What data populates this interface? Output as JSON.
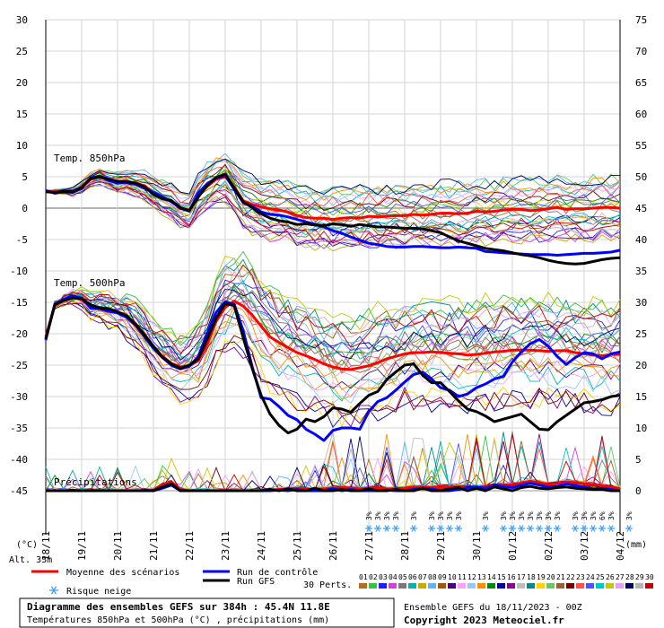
{
  "chart_data": {
    "type": "line",
    "title": "",
    "left_axis_ticks": [
      "30",
      "25",
      "20",
      "15",
      "10",
      "5",
      "0",
      "-5",
      "-10",
      "-15",
      "-20",
      "-25",
      "-30",
      "-35",
      "-40",
      "-45"
    ],
    "right_axis_ticks": [
      "75",
      "70",
      "65",
      "60",
      "55",
      "50",
      "45",
      "40",
      "35",
      "30",
      "25",
      "20",
      "15",
      "10",
      "5",
      "0"
    ],
    "left_unit": "(°C)",
    "right_unit": "(mm)",
    "altitude_label": "Alt. 33m",
    "date_labels": [
      "18/11",
      "19/11",
      "20/11",
      "21/11",
      "22/11",
      "23/11",
      "24/11",
      "25/11",
      "26/11",
      "27/11",
      "28/11",
      "29/11",
      "30/11",
      "01/12",
      "02/12",
      "03/12",
      "04/12"
    ],
    "panel_labels": {
      "t850": "Temp. 850hPa",
      "t500": "Temp. 500hPa",
      "precip": "Précipitations"
    },
    "x": [
      0,
      6,
      12,
      18,
      24,
      30,
      36,
      42,
      48,
      54,
      60,
      66,
      72,
      78,
      84,
      90,
      96,
      102,
      108,
      114,
      120,
      126,
      132,
      138,
      144,
      150,
      156,
      162,
      168,
      174,
      180,
      186,
      192,
      198,
      204,
      210,
      216,
      222,
      228,
      234,
      240,
      246,
      252,
      258,
      264,
      270,
      276,
      282,
      288,
      294,
      300,
      306,
      312,
      318,
      324,
      330,
      336,
      342,
      348,
      354,
      360,
      366,
      372,
      378,
      384
    ],
    "series": [
      {
        "name": "Moyenne des scénarios",
        "panel": "t850",
        "color": "#ff0000",
        "values": [
          2.7,
          2.6,
          2.7,
          2.6,
          3.4,
          4.6,
          4.9,
          4.5,
          4.2,
          4.3,
          3.9,
          3.6,
          2.4,
          1.6,
          1.2,
          -0.1,
          -0.3,
          2.0,
          3.5,
          4.6,
          5.0,
          3.4,
          1.2,
          0.6,
          0.2,
          -0.1,
          -0.3,
          -0.6,
          -1.2,
          -1.5,
          -1.6,
          -1.6,
          -1.8,
          -1.6,
          -1.5,
          -1.6,
          -1.3,
          -1.4,
          -1.3,
          -1.2,
          -1.2,
          -1.0,
          -1.1,
          -1.0,
          -0.8,
          -0.8,
          -0.9,
          -0.8,
          -0.5,
          -0.6,
          -0.5,
          -0.3,
          -0.2,
          -0.2,
          -0.4,
          -0.3,
          -0.1,
          0.1,
          -0.2,
          -0.1,
          -0.1,
          0.0,
          0.1,
          0.1,
          0.0
        ]
      },
      {
        "name": "Run de contrôle",
        "panel": "t850",
        "color": "#0000ff",
        "values": [
          2.8,
          2.4,
          2.6,
          2.5,
          3.2,
          4.8,
          5.1,
          4.4,
          4.0,
          4.1,
          3.8,
          3.2,
          2.5,
          1.8,
          1.0,
          0.0,
          -0.5,
          2.4,
          3.9,
          4.8,
          5.2,
          3.0,
          0.9,
          0.3,
          -0.6,
          -1.0,
          -1.1,
          -1.4,
          -1.8,
          -2.2,
          -2.6,
          -3.0,
          -3.6,
          -4.0,
          -4.6,
          -5.1,
          -5.6,
          -5.8,
          -6.1,
          -6.2,
          -6.2,
          -6.1,
          -6.1,
          -6.2,
          -6.3,
          -6.3,
          -6.2,
          -6.3,
          -6.4,
          -6.9,
          -7.0,
          -7.1,
          -7.2,
          -7.3,
          -7.4,
          -7.4,
          -7.4,
          -7.5,
          -7.4,
          -7.3,
          -7.2,
          -7.2,
          -7.1,
          -7.0,
          -6.7
        ]
      },
      {
        "name": "Run GFS",
        "panel": "t850",
        "color": "#000000",
        "values": [
          2.6,
          2.5,
          2.7,
          2.6,
          3.3,
          4.7,
          5.0,
          4.6,
          4.3,
          4.2,
          4.0,
          3.4,
          2.2,
          1.5,
          1.2,
          0.1,
          -0.4,
          1.8,
          3.6,
          4.9,
          5.4,
          3.2,
          1.0,
          0.1,
          -0.9,
          -1.6,
          -2.0,
          -2.2,
          -2.6,
          -2.5,
          -2.7,
          -2.8,
          -2.5,
          -2.6,
          -2.9,
          -2.6,
          -2.8,
          -3.0,
          -3.0,
          -3.1,
          -3.2,
          -3.2,
          -3.3,
          -3.6,
          -3.9,
          -4.6,
          -5.2,
          -5.6,
          -6.0,
          -6.4,
          -6.6,
          -6.8,
          -7.1,
          -7.4,
          -7.6,
          -7.9,
          -8.3,
          -8.6,
          -8.8,
          -8.9,
          -8.8,
          -8.5,
          -8.2,
          -8.0,
          -7.9
        ]
      },
      {
        "name": "Moyenne des scénarios",
        "panel": "t500",
        "color": "#ff0000",
        "values": [
          -20.5,
          -15.5,
          -14.6,
          -14.2,
          -14.5,
          -15.6,
          -15.8,
          -16.2,
          -16.6,
          -17.2,
          -18.4,
          -20.1,
          -22.1,
          -23.6,
          -24.7,
          -25.3,
          -25.1,
          -24.3,
          -21.7,
          -18.0,
          -15.8,
          -14.8,
          -15.6,
          -17.0,
          -18.8,
          -20.5,
          -21.4,
          -22.2,
          -23.0,
          -23.5,
          -24.1,
          -24.8,
          -25.3,
          -25.6,
          -25.7,
          -25.4,
          -25.1,
          -24.6,
          -24.0,
          -23.6,
          -23.2,
          -23.0,
          -23.0,
          -22.9,
          -23.0,
          -23.1,
          -23.2,
          -23.4,
          -23.3,
          -23.1,
          -22.9,
          -22.8,
          -22.6,
          -22.6,
          -22.6,
          -22.7,
          -22.8,
          -22.7,
          -22.7,
          -23.0,
          -23.2,
          -23.4,
          -23.5,
          -23.3,
          -23.3
        ]
      },
      {
        "name": "Run de contrôle",
        "panel": "t500",
        "color": "#0000ff",
        "values": [
          -21.0,
          -15.3,
          -14.5,
          -14.0,
          -14.3,
          -15.9,
          -16.0,
          -16.4,
          -16.7,
          -17.4,
          -18.6,
          -20.5,
          -22.3,
          -23.8,
          -25.0,
          -25.6,
          -25.2,
          -23.6,
          -19.9,
          -16.6,
          -14.9,
          -15.3,
          -19.5,
          -25.2,
          -30.2,
          -30.4,
          -31.6,
          -33.0,
          -33.7,
          -35.2,
          -36.0,
          -37.0,
          -35.4,
          -35.0,
          -35.0,
          -35.2,
          -32.4,
          -30.8,
          -30.2,
          -29.0,
          -27.7,
          -26.5,
          -26.1,
          -27.2,
          -28.6,
          -29.0,
          -30.0,
          -29.6,
          -28.6,
          -28.0,
          -27.2,
          -26.8,
          -24.5,
          -22.9,
          -21.6,
          -20.9,
          -22.0,
          -23.6,
          -24.9,
          -23.8,
          -23.0,
          -23.2,
          -24.0,
          -23.2,
          -22.9
        ]
      },
      {
        "name": "Run GFS",
        "panel": "t500",
        "color": "#000000",
        "values": [
          -20.8,
          -15.4,
          -14.7,
          -14.3,
          -14.4,
          -15.4,
          -15.9,
          -16.0,
          -16.5,
          -17.1,
          -18.5,
          -20.2,
          -22.0,
          -23.7,
          -24.8,
          -25.5,
          -25.0,
          -24.0,
          -20.8,
          -17.5,
          -15.2,
          -15.5,
          -20.6,
          -25.5,
          -29.8,
          -32.8,
          -34.6,
          -35.8,
          -35.2,
          -33.6,
          -34.0,
          -33.2,
          -31.8,
          -32.0,
          -32.5,
          -31.1,
          -29.8,
          -29.2,
          -27.3,
          -26.1,
          -25.0,
          -24.8,
          -26.6,
          -27.8,
          -27.8,
          -29.2,
          -30.7,
          -32.0,
          -32.4,
          -33.1,
          -34.0,
          -33.6,
          -33.2,
          -32.8,
          -34.0,
          -35.2,
          -35.3,
          -34.0,
          -33.0,
          -32.0,
          -31.0,
          -30.8,
          -30.5,
          -30.0,
          -29.8
        ]
      },
      {
        "name": "Moyenne des scénarios",
        "panel": "precip",
        "color": "#ff0000",
        "values": [
          0,
          0,
          0,
          0,
          0,
          0,
          0,
          0,
          0,
          0,
          0,
          0,
          0.1,
          0.8,
          1.4,
          0.2,
          0,
          0,
          0,
          0,
          0,
          0,
          0,
          0,
          0,
          0.1,
          0.2,
          0.3,
          0.4,
          0.3,
          0.2,
          0.3,
          0.4,
          0.5,
          0.4,
          0.3,
          0.4,
          0.5,
          0.3,
          0.3,
          0.4,
          0.6,
          0.5,
          0.5,
          0.6,
          0.6,
          0.7,
          0.6,
          0.5,
          0.7,
          0.8,
          0.9,
          1.0,
          1.2,
          1.5,
          1.3,
          1.0,
          1.2,
          1.4,
          1.3,
          1.1,
          1.0,
          0.8,
          0.6,
          0.3
        ]
      },
      {
        "name": "Run de contrôle",
        "panel": "precip",
        "color": "#0000ff",
        "values": [
          0,
          0,
          0,
          0,
          0,
          0,
          0,
          0,
          0,
          0,
          0,
          0,
          0,
          0.4,
          0.9,
          0,
          0,
          0,
          0,
          0,
          0,
          0,
          0,
          0,
          0,
          0,
          0.1,
          0,
          0.2,
          0,
          0,
          0,
          0.3,
          0,
          0.2,
          0,
          0,
          0,
          0.1,
          0,
          0,
          0.2,
          0.4,
          0.3,
          0,
          0,
          0.2,
          0.5,
          0.6,
          0.4,
          0.8,
          0.7,
          0.5,
          0.9,
          1.2,
          0.9,
          0.6,
          0.7,
          1.1,
          0.8,
          0.6,
          0.3,
          0.4,
          0.2,
          0
        ]
      },
      {
        "name": "Run GFS",
        "panel": "precip",
        "color": "#000000",
        "values": [
          0,
          0,
          0,
          0,
          0,
          0,
          0,
          0,
          0,
          0,
          0,
          0,
          0,
          0.6,
          1.1,
          0,
          0,
          0,
          0,
          0,
          0,
          0,
          0,
          0,
          0,
          0.2,
          0,
          0.3,
          0,
          0,
          0.4,
          0,
          0,
          0.2,
          0,
          0,
          0.3,
          0,
          0,
          0.2,
          0,
          0,
          0.4,
          0,
          0,
          0.3,
          0.5,
          0,
          0.4,
          0,
          0.6,
          0.3,
          0,
          0.5,
          0.7,
          0.4,
          0.3,
          0.5,
          0.6,
          0.4,
          0.3,
          0.2,
          0.2,
          0,
          0
        ]
      }
    ],
    "members": {
      "count": 30,
      "colors": [
        "#b46e1e",
        "#2dc83c",
        "#1e1eff",
        "#dc3cdc",
        "#787878",
        "#00b4b4",
        "#c8aa00",
        "#5ab4ff",
        "#a05a00",
        "#4b007d",
        "#ffa0ff",
        "#96c8ff",
        "#ff8c00",
        "#008c00",
        "#0000a0",
        "#8c008c",
        "#bebebe",
        "#008c8c",
        "#ffd200",
        "#64c864",
        "#966432",
        "#780000",
        "#ff5050",
        "#5050ff",
        "#00c8c8",
        "#c8c800",
        "#e6a0e6",
        "#000064",
        "#b4b4b4",
        "#c80000"
      ]
    },
    "snow_risk_markers": [
      {
        "date": "27/11 00h",
        "label": "3%"
      },
      {
        "date": "27/11 06h",
        "label": "3%"
      },
      {
        "date": "27/11 12h",
        "label": "3%"
      },
      {
        "date": "27/11 18h",
        "label": "3%"
      },
      {
        "date": "28/11 06h",
        "label": "3%"
      },
      {
        "date": "28/11 18h",
        "label": "3%"
      },
      {
        "date": "29/11 00h",
        "label": "3%"
      },
      {
        "date": "29/11 06h",
        "label": "3%"
      },
      {
        "date": "29/11 12h",
        "label": "3%"
      },
      {
        "date": "30/11 06h",
        "label": "3%"
      },
      {
        "date": "30/11 18h",
        "label": "3%"
      },
      {
        "date": "01/12 00h",
        "label": "3%"
      },
      {
        "date": "01/12 06h",
        "label": "3%"
      },
      {
        "date": "01/12 12h",
        "label": "3%"
      },
      {
        "date": "01/12 18h",
        "label": "3%"
      },
      {
        "date": "02/12 00h",
        "label": "3%"
      },
      {
        "date": "02/12 06h",
        "label": "3%"
      },
      {
        "date": "02/12 18h",
        "label": "3%"
      },
      {
        "date": "03/12 00h",
        "label": "3%"
      },
      {
        "date": "03/12 06h",
        "label": "3%"
      },
      {
        "date": "03/12 12h",
        "label": "6%"
      },
      {
        "date": "03/12 18h",
        "label": "3%"
      },
      {
        "date": "04/12 06h",
        "label": "3%"
      }
    ],
    "grid": true
  },
  "legend": {
    "mean_label": "Moyenne des scénarios",
    "mean_color": "#ff0000",
    "control_label": "Run de contrôle",
    "control_color": "#0000ff",
    "gfs_label": "Run GFS",
    "gfs_color": "#000000",
    "snow_label": "Risque neige",
    "perts_label": "30 Perts.",
    "member_numbers": [
      "01",
      "02",
      "03",
      "04",
      "05",
      "06",
      "07",
      "08",
      "09",
      "10",
      "11",
      "12",
      "13",
      "14",
      "15",
      "16",
      "17",
      "18",
      "19",
      "20",
      "21",
      "22",
      "23",
      "24",
      "25",
      "26",
      "27",
      "28",
      "29",
      "30"
    ]
  },
  "footer": {
    "title": "Diagramme des ensembles GEFS sur 384h : 45.4N 11.8E",
    "subtitle": "Températures 850hPa et 500hPa (°C) , précipitations (mm)",
    "run_info": "Ensemble GEFS du 18/11/2023 - 00Z",
    "copyright": "Copyright 2023 Meteociel.fr"
  }
}
